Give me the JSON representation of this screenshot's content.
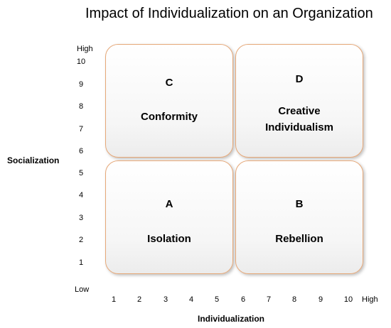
{
  "title": "Impact of Individualization on an Organization",
  "y_axis": {
    "label": "Socialization",
    "high": "High",
    "low": "Low",
    "ticks": [
      "10",
      "9",
      "8",
      "7",
      "6",
      "5",
      "4",
      "3",
      "2",
      "1"
    ]
  },
  "x_axis": {
    "label": "Individualization",
    "high": "High",
    "ticks": [
      "1",
      "2",
      "3",
      "4",
      "5",
      "6",
      "7",
      "8",
      "9",
      "10"
    ]
  },
  "quadrants": {
    "c": {
      "letter": "C",
      "name": "Conformity"
    },
    "d": {
      "letter": "D",
      "name_line1": "Creative",
      "name_line2": "Individualism"
    },
    "a": {
      "letter": "A",
      "name": "Isolation"
    },
    "b": {
      "letter": "B",
      "name": "Rebellion"
    }
  },
  "colors": {
    "quadrant_border": "#e6a878",
    "quadrant_fill": "#f4f4f4"
  }
}
